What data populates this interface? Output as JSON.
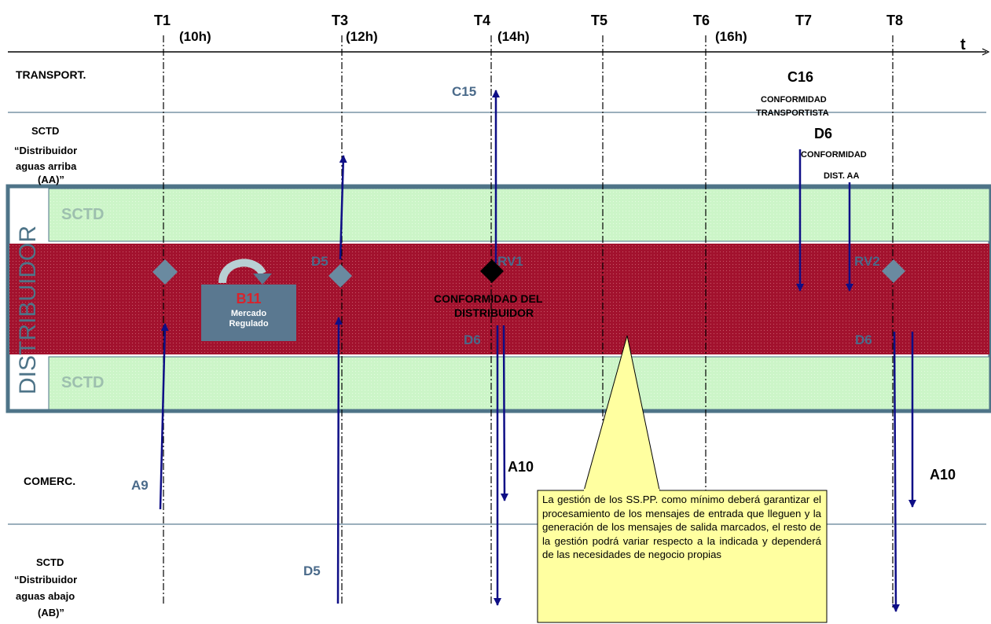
{
  "time_axis": {
    "axis_label": "t",
    "markers": [
      {
        "id": "T1",
        "label": "T1",
        "hour": "(10h)"
      },
      {
        "id": "T3",
        "label": "T3",
        "hour": "(12h)"
      },
      {
        "id": "T4",
        "label": "T4",
        "hour": "(14h)"
      },
      {
        "id": "T5",
        "label": "T5",
        "hour": ""
      },
      {
        "id": "T6",
        "label": "T6",
        "hour": "(16h)"
      },
      {
        "id": "T7",
        "label": "T7",
        "hour": ""
      },
      {
        "id": "T8",
        "label": "T8",
        "hour": ""
      }
    ]
  },
  "lanes": {
    "transport": "TRANSPORT.",
    "upstream": [
      "SCTD",
      "“Distribuidor",
      "aguas arriba",
      "(AA)”"
    ],
    "distributor": "DISTRIBUIDOR",
    "sctd_top": "SCTD",
    "sctd_bottom": "SCTD",
    "comerc": "COMERC.",
    "downstream": [
      "SCTD",
      "“Distribuidor",
      "aguas abajo",
      "(AB)”"
    ]
  },
  "labels": {
    "c15": "C15",
    "c16": "C16",
    "c16_caption": [
      "CONFORMIDAD",
      "TRANSPORTISTA"
    ],
    "d6_top": "D6",
    "d6_top_caption": [
      "CONFORMIDAD",
      "DIST. AA"
    ],
    "d5_mid": "D5",
    "rv1": "RV1",
    "rv2": "RV2",
    "conformidad_distribuidor": [
      "CONFORMIDAD DEL",
      "DISTRIBUIDOR"
    ],
    "d6_left": "D6",
    "d6_right": "D6",
    "a9": "A9",
    "a10_left": "A10",
    "a10_right": "A10",
    "d5_bottom": "D5"
  },
  "process_box": {
    "code": "B11",
    "subtitle": [
      "Mercado",
      "Regulado"
    ]
  },
  "callout": {
    "text": "La gestión de los SS.PP. como mínimo deberá garantizar el procesamiento de los mensajes de entrada que lleguen y la generación de los mensajes de salida marcados, el resto de la gestión podrá variar respecto a la indicada y dependerá de las necesidades de negocio propias"
  },
  "colors": {
    "band_green": "#ccf5c8",
    "band_red": "#a2122e",
    "frame": "#4e7488",
    "arrow_blue": "#0e0e86",
    "diamond": "#6a8aa0",
    "callout_fill": "#ffffa0",
    "lane_line": "#5f7f94"
  }
}
